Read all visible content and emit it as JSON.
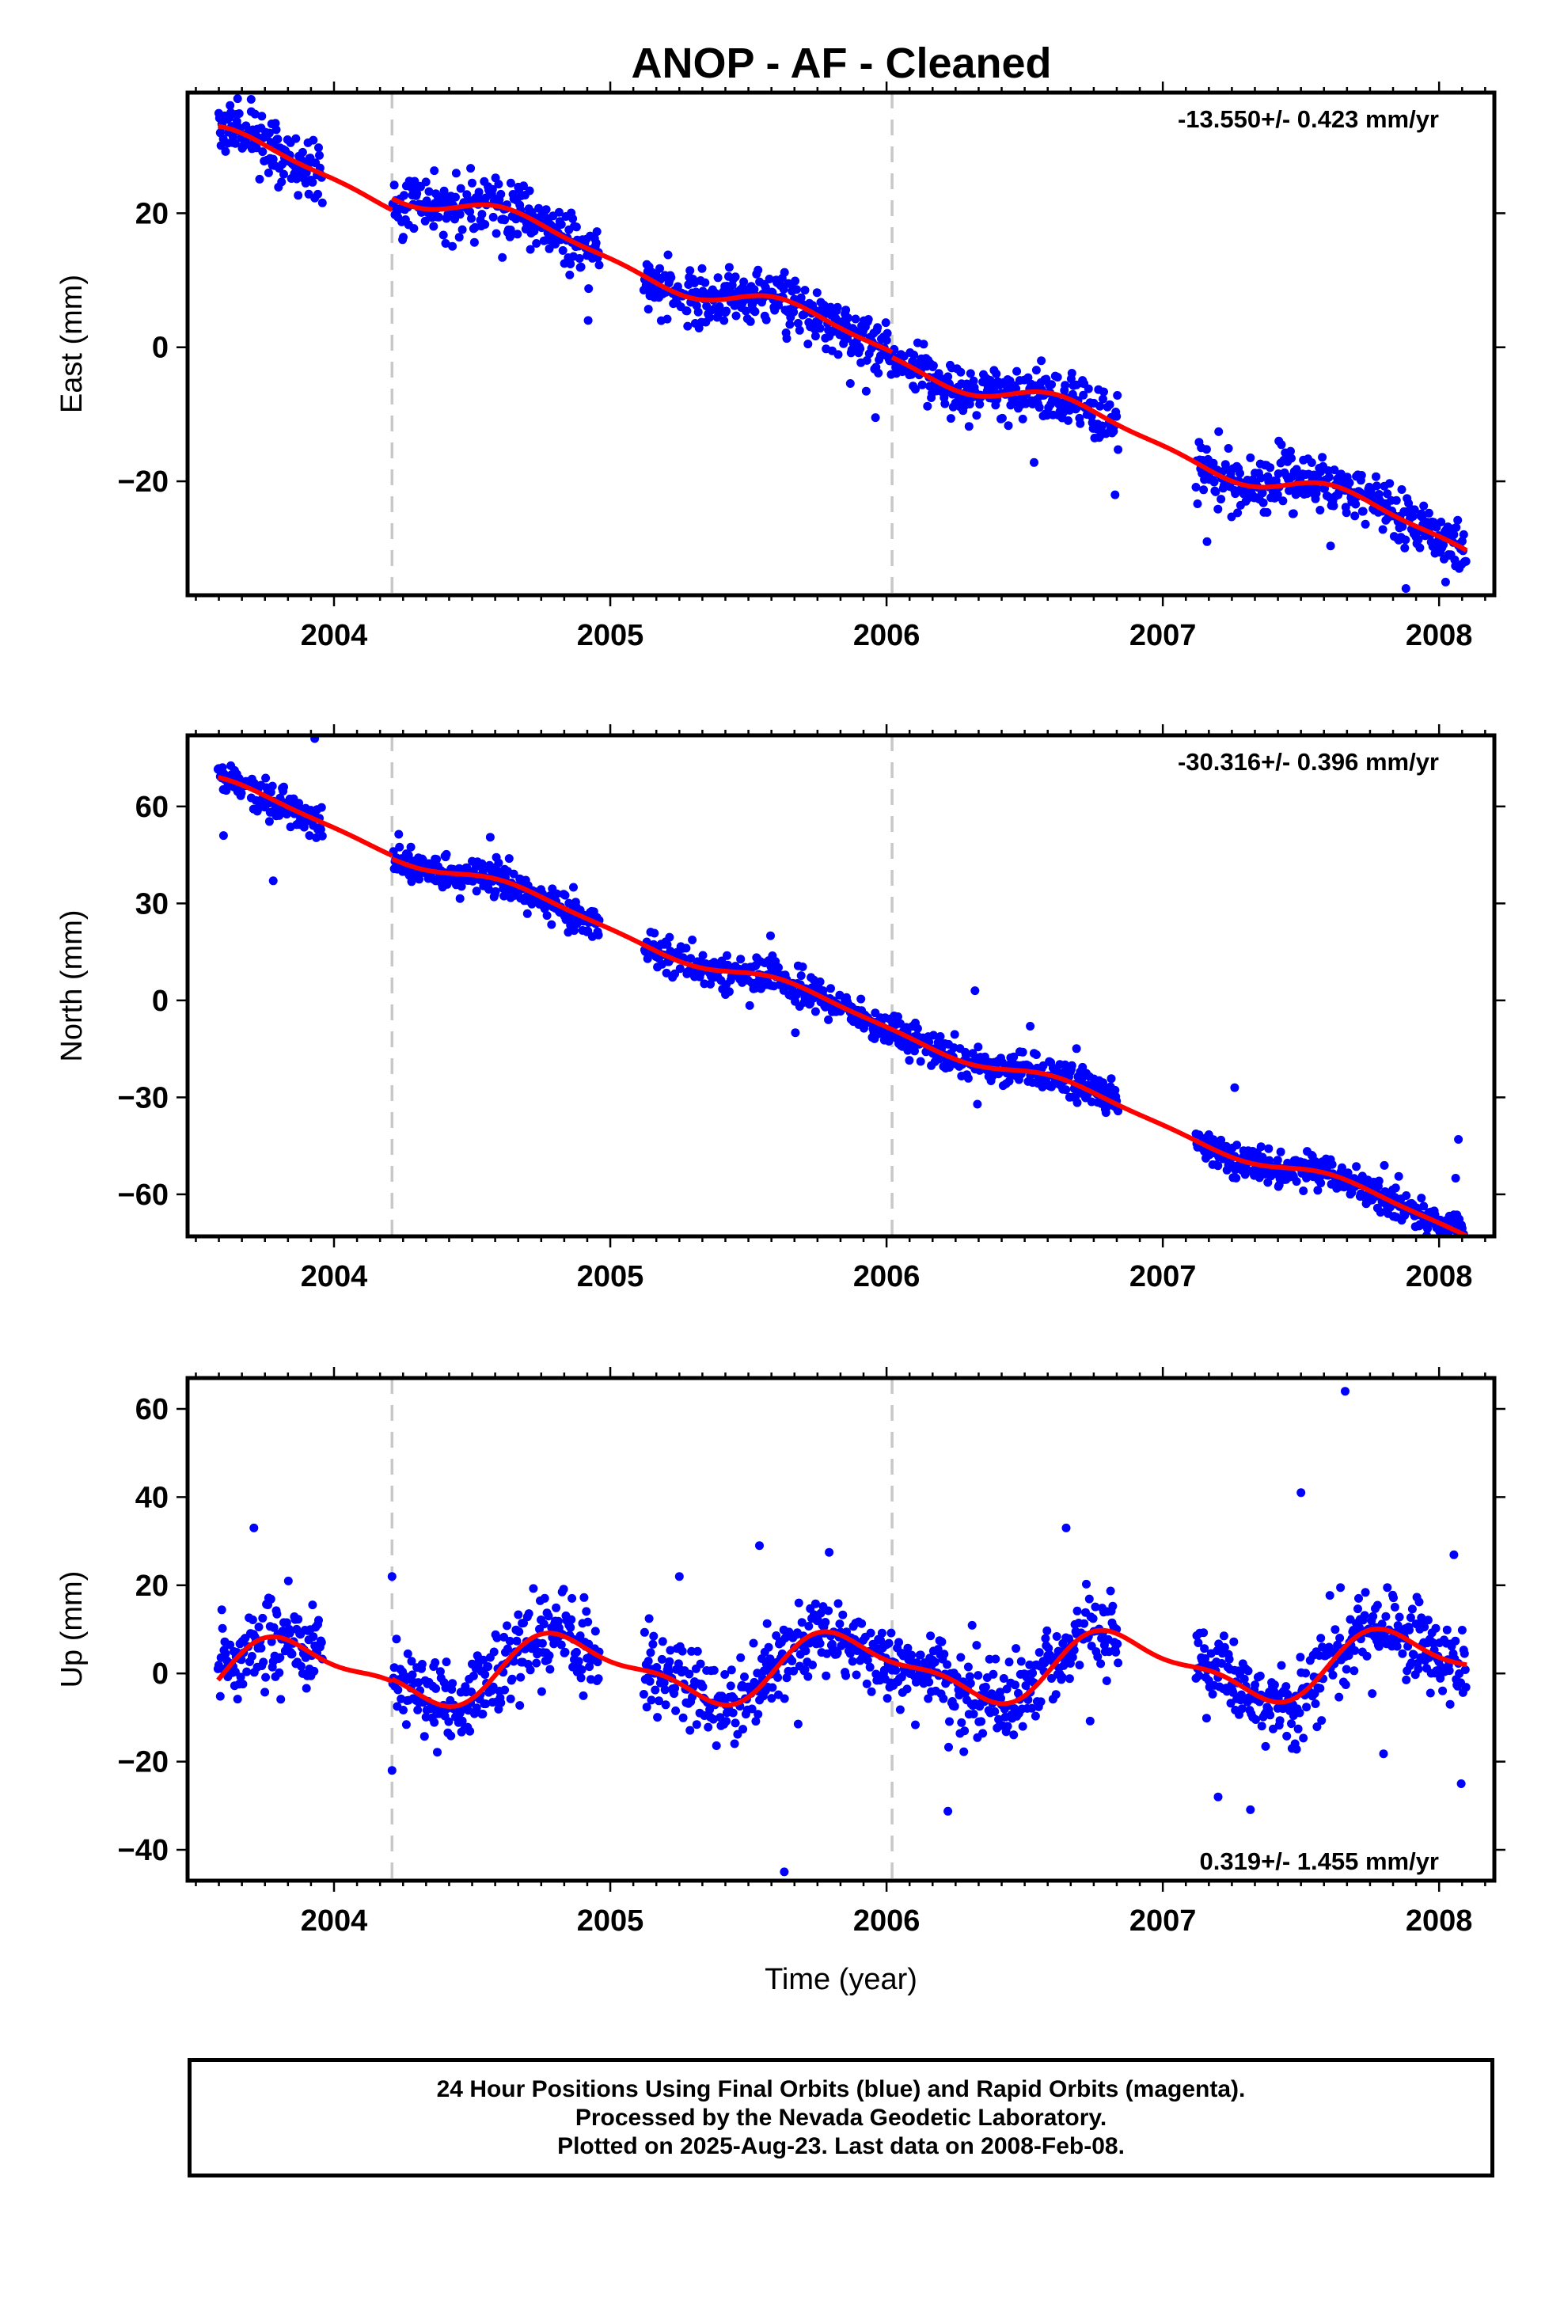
{
  "title": "ANOP  - AF - Cleaned",
  "footer": {
    "lines": [
      "24 Hour Positions Using Final Orbits (blue) and Rapid Orbits (magenta).",
      "Processed by the Nevada Geodetic Laboratory.",
      "Plotted on 2025-Aug-23. Last data on 2008-Feb-08."
    ]
  },
  "colors": {
    "final_orbits": "#0000ff",
    "rapid_orbits": "#ff00ff",
    "model": "#ff0000",
    "equipment_change": "#c8c8c8"
  },
  "chart_data": [
    {
      "type": "scatter",
      "title": "ANOP  - AF - Cleaned",
      "xlabel": "",
      "ylabel": "East (mm)",
      "xlim": [
        2003.47,
        2008.2
      ],
      "ylim": [
        -37,
        38
      ],
      "x_ticks": [
        2004,
        2005,
        2006,
        2007,
        2008
      ],
      "y_ticks": [
        20,
        0,
        -20
      ],
      "y_tick_labels": [
        "20",
        "0",
        "−20"
      ],
      "rate_label": "-13.550+/- 0.423 mm/yr",
      "rate_label_position": "top-right",
      "equipment_changes": [
        2004.21,
        2006.02
      ],
      "data_gaps": [
        [
          2003.96,
          2004.21
        ],
        [
          2004.96,
          2005.12
        ],
        [
          2006.84,
          2007.12
        ]
      ],
      "data_start": 2003.58,
      "data_end": 2008.1,
      "rate_mm_per_yr": -13.55,
      "annual_amplitude_mm": 1.9,
      "annual_phase_yr": 0.45,
      "semiannual_amplitude_mm": 0.6,
      "offsets": [
        {
          "epoch": 2004.21,
          "mm": 1.7
        },
        {
          "epoch": 2006.02,
          "mm": -0.8
        }
      ],
      "intercept_mm_at_2003_58": 31,
      "scatter_sigma_mm": 2.0,
      "outliers": [
        {
          "x": 2003.7,
          "y": 37
        },
        {
          "x": 2004.92,
          "y": 4
        },
        {
          "x": 2005.96,
          "y": -10.5
        },
        {
          "x": 2007.16,
          "y": -29
        },
        {
          "x": 2007.88,
          "y": -36
        },
        {
          "x": 2007.42,
          "y": -14
        },
        {
          "x": 2006.56,
          "y": -2
        },
        {
          "x": 2004.64,
          "y": 24.5
        }
      ],
      "grid": false,
      "series": [
        {
          "values": "daily positions",
          "marker": "dot"
        },
        {
          "values": "model fit",
          "marker": "line"
        }
      ]
    },
    {
      "type": "scatter",
      "xlabel": "",
      "ylabel": "North (mm)",
      "xlim": [
        2003.47,
        2008.2
      ],
      "ylim": [
        -73,
        82
      ],
      "x_ticks": [
        2004,
        2005,
        2006,
        2007,
        2008
      ],
      "y_ticks": [
        60,
        30,
        0,
        -30,
        -60
      ],
      "y_tick_labels": [
        "60",
        "30",
        "0",
        "−30",
        "−60"
      ],
      "rate_label": "-30.316+/- 0.396 mm/yr",
      "rate_label_position": "top-right",
      "equipment_changes": [
        2004.21,
        2006.02
      ],
      "data_gaps": [
        [
          2003.96,
          2004.21
        ],
        [
          2004.96,
          2005.12
        ],
        [
          2006.84,
          2007.12
        ]
      ],
      "data_start": 2003.58,
      "data_end": 2008.1,
      "rate_mm_per_yr": -30.316,
      "annual_amplitude_mm": 2.5,
      "annual_phase_yr": 0.45,
      "semiannual_amplitude_mm": 0.7,
      "offsets": [
        {
          "epoch": 2004.21,
          "mm": -1.0
        },
        {
          "epoch": 2006.02,
          "mm": 0.0
        }
      ],
      "intercept_mm_at_2003_58": 66.5,
      "scatter_sigma_mm": 2.5,
      "outliers": [
        {
          "x": 2003.93,
          "y": 81
        },
        {
          "x": 2003.6,
          "y": 51
        },
        {
          "x": 2003.78,
          "y": 37
        },
        {
          "x": 2005.58,
          "y": 20
        },
        {
          "x": 2006.32,
          "y": 3
        },
        {
          "x": 2006.52,
          "y": -8
        },
        {
          "x": 2007.26,
          "y": -27
        },
        {
          "x": 2008.07,
          "y": -43
        },
        {
          "x": 2008.06,
          "y": -55
        },
        {
          "x": 2005.67,
          "y": -10
        }
      ],
      "grid": false,
      "series": [
        {
          "values": "daily positions",
          "marker": "dot"
        },
        {
          "values": "model fit",
          "marker": "line"
        }
      ]
    },
    {
      "type": "scatter",
      "xlabel": "Time (year)",
      "ylabel": "Up (mm)",
      "xlim": [
        2003.47,
        2008.2
      ],
      "ylim": [
        -47,
        67
      ],
      "x_ticks": [
        2004,
        2005,
        2006,
        2007,
        2008
      ],
      "y_ticks": [
        60,
        40,
        20,
        0,
        -20,
        -40
      ],
      "y_tick_labels": [
        "60",
        "40",
        "20",
        "0",
        "−20",
        "−40"
      ],
      "rate_label": "0.319+/- 1.455 mm/yr",
      "rate_label_position": "bottom-right",
      "equipment_changes": [
        2004.21,
        2006.02
      ],
      "data_gaps": [
        [
          2003.96,
          2004.21
        ],
        [
          2004.96,
          2005.12
        ],
        [
          2006.84,
          2007.12
        ]
      ],
      "data_start": 2003.58,
      "data_end": 2008.1,
      "rate_mm_per_yr": 0.319,
      "annual_amplitude_mm": 7.0,
      "annual_phase_yr": 0.6,
      "semiannual_amplitude_mm": 2.5,
      "offsets": [
        {
          "epoch": 2004.21,
          "mm": 0.5
        },
        {
          "epoch": 2006.02,
          "mm": 0.0
        }
      ],
      "intercept_mm_at_2003_58": 0,
      "scatter_sigma_mm": 4.5,
      "outliers": [
        {
          "x": 2007.66,
          "y": 64
        },
        {
          "x": 2007.5,
          "y": 41
        },
        {
          "x": 2005.63,
          "y": -45
        },
        {
          "x": 2003.71,
          "y": 33
        },
        {
          "x": 2006.65,
          "y": 33
        },
        {
          "x": 2004.21,
          "y": 22
        },
        {
          "x": 2005.25,
          "y": 22
        },
        {
          "x": 2007.2,
          "y": -28
        },
        {
          "x": 2008.08,
          "y": -25
        },
        {
          "x": 2004.21,
          "y": -22
        },
        {
          "x": 2005.54,
          "y": 29
        }
      ],
      "grid": false,
      "series": [
        {
          "values": "daily positions",
          "marker": "dot"
        },
        {
          "values": "model fit",
          "marker": "line"
        }
      ]
    }
  ]
}
